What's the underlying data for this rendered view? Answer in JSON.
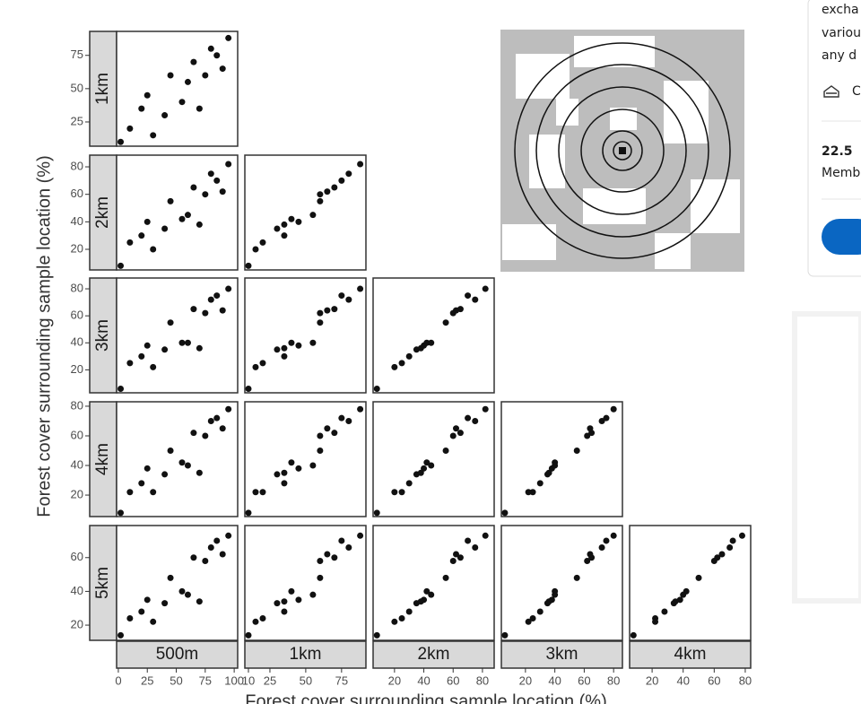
{
  "chart_data": {
    "type": "scatter",
    "y_label": "Forest cover surrounding sample location (%)",
    "x_label": "Forest cover surrounding sample location (%)",
    "point_color": "#111111",
    "columns": [
      {
        "label": "500m",
        "xlim": [
          -1.5,
          103
        ],
        "xticks": [
          0,
          25,
          50,
          75,
          100
        ],
        "x": [
          2,
          10,
          20,
          25,
          30,
          40,
          45,
          55,
          60,
          65,
          75,
          80,
          85,
          95,
          70,
          90
        ]
      },
      {
        "label": "1km",
        "xlim": [
          7.5,
          92
        ],
        "xticks": [
          10,
          25,
          50,
          75
        ],
        "x": [
          10,
          20,
          35,
          45,
          15,
          30,
          60,
          40,
          55,
          70,
          60,
          80,
          75,
          88,
          35,
          65
        ]
      },
      {
        "label": "2km",
        "xlim": [
          5.4,
          88
        ],
        "xticks": [
          20,
          40,
          60,
          80
        ],
        "x": [
          8,
          25,
          30,
          40,
          20,
          35,
          55,
          42,
          45,
          65,
          60,
          75,
          70,
          82,
          38,
          62
        ]
      },
      {
        "label": "3km",
        "xlim": [
          3.6,
          86
        ],
        "xticks": [
          20,
          40,
          60,
          80
        ],
        "x": [
          6,
          25,
          30,
          38,
          22,
          35,
          55,
          40,
          40,
          65,
          62,
          72,
          75,
          80,
          36,
          64
        ]
      },
      {
        "label": "4km",
        "xlim": [
          5.5,
          83.5
        ],
        "xticks": [
          20,
          40,
          60,
          80
        ],
        "x": [
          8,
          22,
          28,
          38,
          22,
          34,
          50,
          42,
          40,
          62,
          60,
          70,
          72,
          78,
          35,
          65
        ]
      }
    ],
    "rows": [
      {
        "label": "1km",
        "ylim": [
          6.8,
          93
        ],
        "yticks": [
          25,
          50,
          75
        ],
        "y": [
          10,
          20,
          35,
          45,
          15,
          30,
          60,
          40,
          55,
          70,
          60,
          80,
          75,
          88,
          35,
          65
        ]
      },
      {
        "label": "2km",
        "ylim": [
          5,
          88.5
        ],
        "yticks": [
          20,
          40,
          60,
          80
        ],
        "y": [
          8,
          25,
          30,
          40,
          20,
          35,
          55,
          42,
          45,
          65,
          60,
          75,
          70,
          82,
          38,
          62
        ]
      },
      {
        "label": "3km",
        "ylim": [
          3,
          88
        ],
        "yticks": [
          20,
          40,
          60,
          80
        ],
        "y": [
          6,
          25,
          30,
          38,
          22,
          35,
          55,
          40,
          40,
          65,
          62,
          72,
          75,
          80,
          36,
          64
        ]
      },
      {
        "label": "4km",
        "ylim": [
          5.5,
          83
        ],
        "yticks": [
          20,
          40,
          60,
          80
        ],
        "y": [
          8,
          22,
          28,
          38,
          22,
          34,
          50,
          42,
          40,
          62,
          60,
          70,
          72,
          78,
          35,
          65
        ]
      },
      {
        "label": "5km",
        "ylim": [
          11,
          79
        ],
        "yticks": [
          20,
          40,
          60
        ],
        "y": [
          14,
          24,
          28,
          35,
          22,
          33,
          48,
          40,
          38,
          60,
          58,
          66,
          70,
          73,
          34,
          62
        ]
      }
    ]
  },
  "sidebar": {
    "lines": [
      "excha",
      "variou",
      "any d"
    ],
    "icon_text": "C",
    "stat_value": "22.5",
    "stat_label": "Membe"
  }
}
